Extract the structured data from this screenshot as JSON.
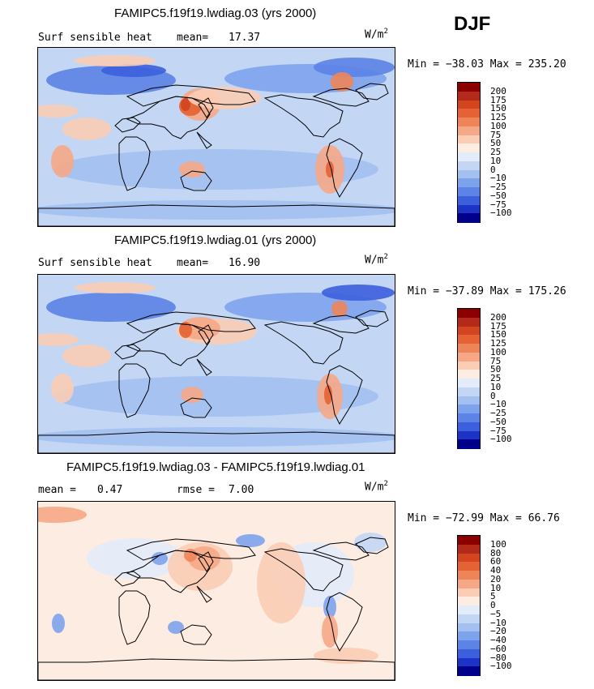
{
  "season": "DJF",
  "units_base": "W/m",
  "units_sup": "2",
  "chart_data": [
    {
      "type": "heatmap",
      "title": "FAMIPC5.f19f19.lwdiag.03 (yrs 2000)",
      "variable": "Surf sensible heat",
      "stat1_label": "mean=",
      "stat1_value": "17.37",
      "stat2_label": "",
      "stat2_value": "",
      "range_text": "Min = −38.03 Max = 235.20",
      "min": -38.03,
      "max": 235.2,
      "colorbar_levels": [
        "200",
        "175",
        "150",
        "125",
        "100",
        "75",
        "50",
        "25",
        "10",
        "0",
        "−10",
        "−25",
        "−50",
        "−75",
        "−100"
      ],
      "colorbar_colors": [
        "#8b0000",
        "#b42a1a",
        "#d2451e",
        "#e46233",
        "#ee8558",
        "#f6a886",
        "#fbcdb5",
        "#fdece2",
        "#e2ecfb",
        "#c3d7f5",
        "#a3c0f1",
        "#7ea3ed",
        "#5c83e6",
        "#3c5fdd",
        "#1d33c6",
        "#00008b"
      ]
    },
    {
      "type": "heatmap",
      "title": "FAMIPC5.f19f19.lwdiag.01 (yrs 2000)",
      "variable": "Surf sensible heat",
      "stat1_label": "mean=",
      "stat1_value": "16.90",
      "stat2_label": "",
      "stat2_value": "",
      "range_text": "Min = −37.89 Max = 175.26",
      "min": -37.89,
      "max": 175.26,
      "colorbar_levels": [
        "200",
        "175",
        "150",
        "125",
        "100",
        "75",
        "50",
        "25",
        "10",
        "0",
        "−10",
        "−25",
        "−50",
        "−75",
        "−100"
      ],
      "colorbar_colors": [
        "#8b0000",
        "#b42a1a",
        "#d2451e",
        "#e46233",
        "#ee8558",
        "#f6a886",
        "#fbcdb5",
        "#fdece2",
        "#e2ecfb",
        "#c3d7f5",
        "#a3c0f1",
        "#7ea3ed",
        "#5c83e6",
        "#3c5fdd",
        "#1d33c6",
        "#00008b"
      ]
    },
    {
      "type": "heatmap",
      "title": "FAMIPC5.f19f19.lwdiag.03 - FAMIPC5.f19f19.lwdiag.01",
      "variable": "",
      "stat1_label": "mean =",
      "stat1_value": "0.47",
      "stat2_label": "rmse =",
      "stat2_value": "7.00",
      "range_text": "Min = −72.99 Max = 66.76",
      "min": -72.99,
      "max": 66.76,
      "colorbar_levels": [
        "100",
        "80",
        "60",
        "40",
        "20",
        "10",
        "5",
        "0",
        "−5",
        "−10",
        "−20",
        "−40",
        "−60",
        "−80",
        "−100"
      ],
      "colorbar_colors": [
        "#8b0000",
        "#b42a1a",
        "#d2451e",
        "#e46233",
        "#ee8558",
        "#f6a886",
        "#fbcdb5",
        "#fdece2",
        "#e2ecfb",
        "#c3d7f5",
        "#a3c0f1",
        "#7ea3ed",
        "#5c83e6",
        "#3c5fdd",
        "#1d33c6",
        "#00008b"
      ]
    }
  ]
}
